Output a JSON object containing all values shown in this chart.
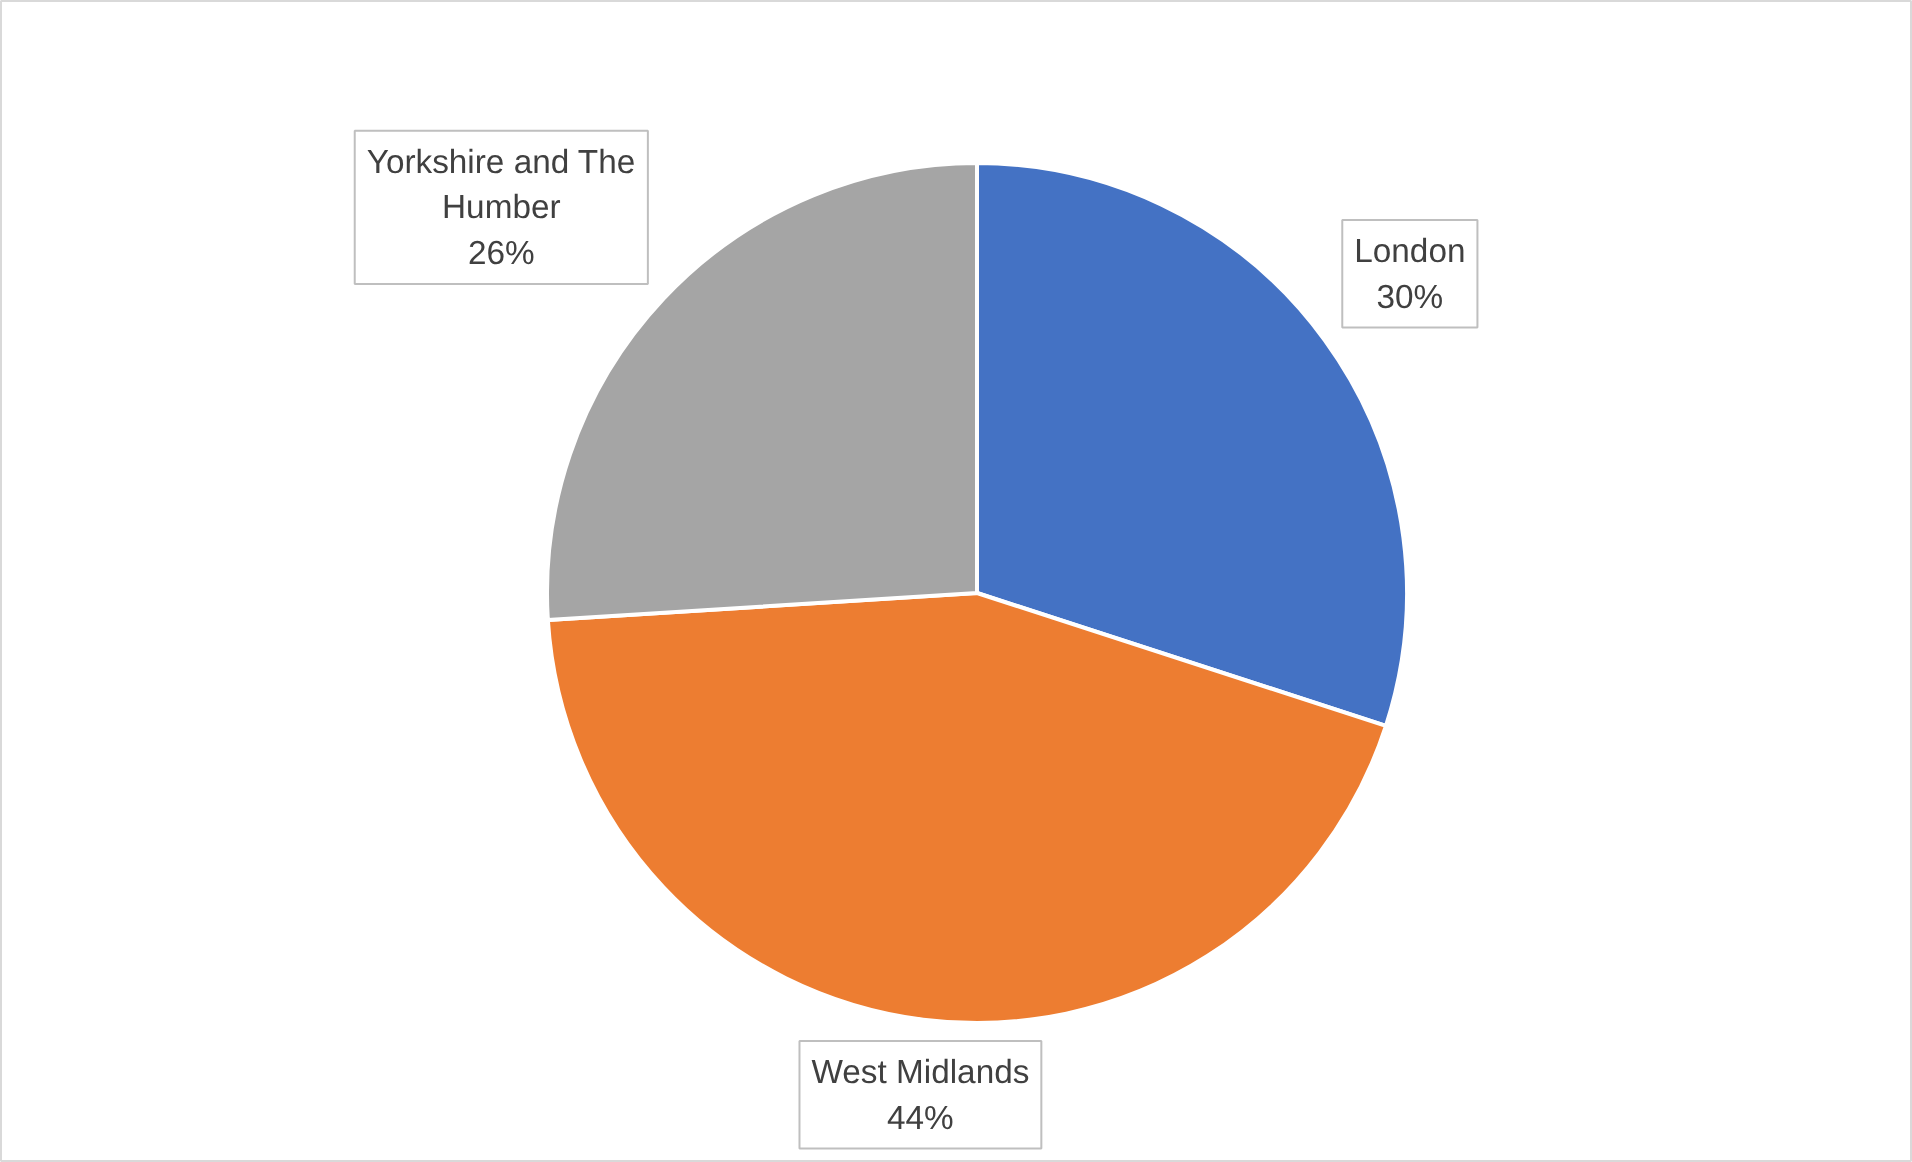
{
  "chart_data": {
    "type": "pie",
    "categories": [
      "London",
      "West Midlands",
      "Yorkshire and The Humber"
    ],
    "values": [
      30,
      44,
      26
    ],
    "value_labels": [
      "30%",
      "44%",
      "26%"
    ],
    "colors": [
      "#4472c4",
      "#ed7d31",
      "#a5a5a5"
    ]
  }
}
